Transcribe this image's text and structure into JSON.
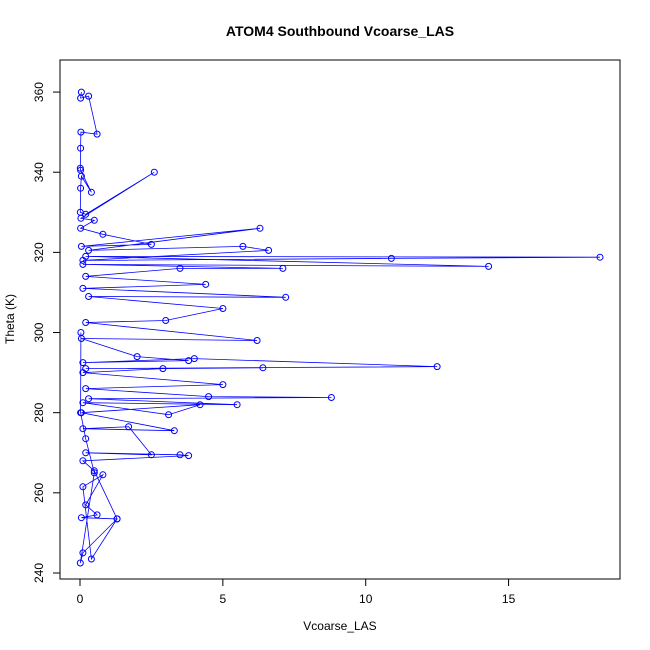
{
  "chart_data": {
    "type": "line",
    "title": "ATOM4 Southbound Vcoarse_LAS",
    "xlabel": "Vcoarse_LAS",
    "ylabel": "Theta (K)",
    "xlim": [
      -0.7,
      18.9
    ],
    "ylim": [
      238.5,
      368
    ],
    "x_ticks": [
      0,
      5,
      10,
      15
    ],
    "y_ticks": [
      240,
      260,
      280,
      300,
      320,
      340,
      360
    ],
    "grid": false,
    "legend": "none",
    "marker": "open-circle",
    "series_color": "#0000ff",
    "series": [
      {
        "x": [
          0.05,
          0.02,
          0.3,
          0.6,
          0.03,
          0.02,
          0.01,
          0.02,
          0.4,
          0.05,
          0.02,
          0.01,
          0.2,
          2.6,
          0.03,
          0.5,
          0.02,
          0.8,
          2.5,
          0.05,
          6.3,
          0.3,
          5.7,
          6.6,
          0.1,
          10.9,
          18.2,
          0.2,
          14.3,
          0.1,
          7.1,
          3.5,
          0.2,
          4.4,
          0.1,
          7.2,
          0.3,
          5.0,
          3.0,
          0.2,
          6.2,
          0.05,
          2.0,
          3.8,
          0.1,
          4.0,
          12.5,
          0.2,
          6.4,
          2.9,
          0.1,
          5.0,
          0.2,
          4.5,
          8.8,
          0.3,
          5.5,
          0.1,
          3.1,
          4.2,
          0.05,
          3.3,
          0.1,
          1.7,
          2.5,
          0.2,
          3.5,
          3.8,
          0.1,
          0.5,
          1.3,
          0.05,
          0.6,
          0.2,
          0.8,
          0.1,
          0.4,
          1.3,
          0.1,
          0.01,
          0.5,
          0.2,
          0.02,
          0.03
        ],
        "y": [
          360.0,
          358.5,
          359.0,
          349.5,
          350.0,
          346.0,
          341.0,
          340.5,
          335.0,
          339.0,
          336.0,
          330.0,
          329.5,
          340.0,
          328.5,
          328.0,
          326.0,
          324.5,
          322.0,
          321.5,
          326.0,
          320.5,
          321.5,
          320.5,
          318.0,
          318.5,
          318.8,
          319.0,
          316.5,
          317.0,
          316.0,
          316.0,
          314.0,
          312.0,
          311.0,
          308.8,
          309.0,
          306.0,
          303.0,
          302.5,
          298.0,
          298.5,
          294.0,
          293.0,
          292.5,
          293.5,
          291.5,
          291.0,
          291.2,
          291.0,
          290.0,
          287.0,
          286.0,
          284.0,
          283.8,
          283.5,
          282.0,
          282.5,
          279.5,
          282.0,
          280.0,
          275.5,
          276.0,
          276.5,
          269.5,
          270.0,
          269.5,
          269.3,
          268.0,
          265.5,
          253.5,
          253.8,
          254.5,
          257.0,
          264.5,
          261.5,
          243.5,
          253.5,
          245.0,
          242.5,
          265.0,
          273.5,
          280.0,
          300.0
        ]
      }
    ]
  }
}
